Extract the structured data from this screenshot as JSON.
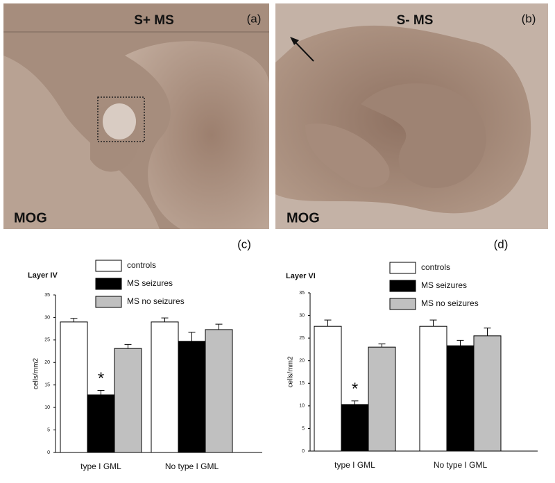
{
  "images": [
    {
      "title": "S+ MS",
      "label": "(a)",
      "stain": "MOG"
    },
    {
      "title": "S- MS",
      "label": "(b)",
      "stain": "MOG"
    }
  ],
  "chart_data": [
    {
      "type": "bar",
      "panel_label": "(c)",
      "title": "Layer IV",
      "ylabel": "cells/mm2",
      "categories": [
        "type I GML",
        "No type I GML"
      ],
      "series": [
        {
          "name": "controls",
          "color": "#ffffff",
          "values": [
            29.0,
            29.0
          ],
          "errors": [
            0.8,
            0.9
          ]
        },
        {
          "name": "MS seizures",
          "color": "#000000",
          "values": [
            12.8,
            24.7
          ],
          "errors": [
            1.0,
            2.0
          ]
        },
        {
          "name": "MS no seizures",
          "color": "#c0c0c0",
          "values": [
            23.1,
            27.3
          ],
          "errors": [
            0.9,
            1.2
          ]
        }
      ],
      "ylim": [
        0,
        35
      ],
      "yticks": [
        0,
        5,
        10,
        15,
        20,
        25,
        30,
        35
      ],
      "annotations": [
        "*"
      ]
    },
    {
      "type": "bar",
      "panel_label": "(d)",
      "title": "Layer VI",
      "ylabel": "cells/mm2",
      "categories": [
        "type I GML",
        "No type I GML"
      ],
      "series": [
        {
          "name": "controls",
          "color": "#ffffff",
          "values": [
            27.6,
            27.6
          ],
          "errors": [
            1.4,
            1.4
          ]
        },
        {
          "name": "MS seizures",
          "color": "#000000",
          "values": [
            10.3,
            23.3
          ],
          "errors": [
            0.8,
            1.2
          ]
        },
        {
          "name": "MS no seizures",
          "color": "#c0c0c0",
          "values": [
            23.0,
            25.5
          ],
          "errors": [
            0.7,
            1.7
          ]
        }
      ],
      "ylim": [
        0,
        35
      ],
      "yticks": [
        0,
        5,
        10,
        15,
        20,
        25,
        30,
        35
      ],
      "annotations": [
        "*"
      ]
    }
  ]
}
